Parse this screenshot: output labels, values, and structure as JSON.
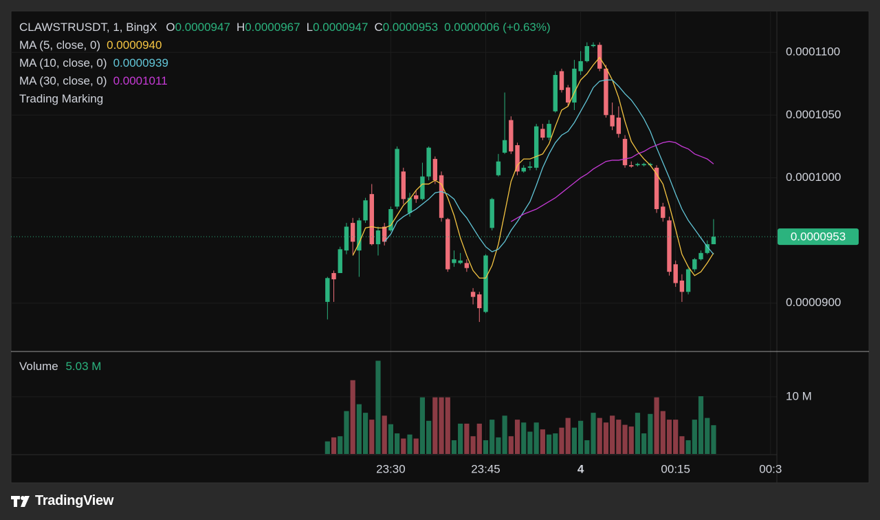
{
  "chart_data": {
    "type": "candlestick",
    "title": "CLAWSTRUSDT, 1, BingX",
    "ohlc_legend": [
      {
        "key": "O",
        "text": "0.0000947"
      },
      {
        "key": "H",
        "text": "0.0000967"
      },
      {
        "key": "L",
        "text": "0.0000947"
      },
      {
        "key": "C",
        "text": "0.0000953"
      }
    ],
    "change": "0.0000006 (+0.63%)",
    "note": "Trading Marking",
    "up_color": "#2bb37e",
    "down_color": "#ef6f79",
    "x": [
      "23:20",
      "23:21",
      "23:22",
      "23:23",
      "23:24",
      "23:25",
      "23:26",
      "23:27",
      "23:28",
      "23:29",
      "23:30",
      "23:31",
      "23:32",
      "23:33",
      "23:34",
      "23:35",
      "23:36",
      "23:37",
      "23:38",
      "23:39",
      "23:40",
      "23:41",
      "23:42",
      "23:43",
      "23:44",
      "23:45",
      "23:46",
      "23:47",
      "23:48",
      "23:49",
      "23:50",
      "23:51",
      "23:52",
      "23:53",
      "23:54",
      "23:55",
      "23:56",
      "23:57",
      "23:58",
      "23:59",
      "00:00",
      "00:01",
      "00:02",
      "00:03",
      "00:04",
      "00:05",
      "00:06",
      "00:07",
      "00:08",
      "00:09",
      "00:10",
      "00:11",
      "00:12",
      "00:13",
      "00:14",
      "00:15",
      "00:16",
      "00:17",
      "00:18",
      "00:19",
      "00:20",
      "00:21"
    ],
    "xlim": [
      "22:30",
      "00:31"
    ],
    "xticks": [
      "23:30",
      "23:45",
      {
        "value": "00:00",
        "label": "4"
      },
      "00:15",
      {
        "value": "00:30",
        "label": "00:3"
      }
    ],
    "ylim": [
      8.62e-05,
      0.0001133
    ],
    "yticks": [
      {
        "value": 9e-05,
        "label": "0.0000900"
      },
      {
        "value": 0.0001,
        "label": "0.0001000"
      },
      {
        "value": 0.000105,
        "label": "0.0001050"
      },
      {
        "value": 0.00011,
        "label": "0.0001100"
      }
    ],
    "grid": true,
    "open": [
      9.01e-05,
      9.24e-05,
      9.24e-05,
      9.42e-05,
      9.64e-05,
      9.42e-05,
      9.66e-05,
      9.87e-05,
      9.47e-05,
      9.61e-05,
      9.58e-05,
      9.77e-05,
      0.0001005,
      9.72e-05,
      9.86e-05,
      9.83e-05,
      0.0001001,
      0.0001015,
      0.0001002,
      9.67e-05,
      9.32e-05,
      9.32e-05,
      9.32e-05,
      9.09e-05,
      9.07e-05,
      8.93e-05,
      9.6e-05,
      0.0001002,
      0.000102,
      0.0001046,
      0.0001026,
      0.0001005,
      0.0001008,
      0.0001008,
      0.0001039,
      0.0001032,
      0.0001053,
      0.0001085,
      0.0001072,
      0.000106,
      0.0001085,
      0.0001093,
      0.0001105,
      0.0001106,
      0.0001087,
      0.000105,
      0.0001048,
      0.0001031,
      0.000101,
      0.000101,
      0.000101,
      0.000101,
      0.0001008,
      9.77e-05,
      9.66e-05,
      9.31e-05,
      9.18e-05,
      9.09e-05,
      9.27e-05,
      9.35e-05,
      9.4e-05,
      9.47e-05
    ],
    "high": [
      9.21e-05,
      9.26e-05,
      9.45e-05,
      9.64e-05,
      9.68e-05,
      9.68e-05,
      9.84e-05,
      9.95e-05,
      9.61e-05,
      9.64e-05,
      9.77e-05,
      0.0001025,
      0.0001008,
      9.88e-05,
      9.9e-05,
      0.0001012,
      0.0001025,
      0.0001017,
      0.0001005,
      9.68e-05,
      9.42e-05,
      9.4e-05,
      9.35e-05,
      9.12e-05,
      9.09e-05,
      9.39e-05,
      9.84e-05,
      0.0001019,
      0.0001068,
      0.0001049,
      0.0001028,
      0.000101,
      0.0001013,
      0.0001043,
      0.0001043,
      0.0001046,
      0.0001085,
      0.0001087,
      0.0001074,
      0.0001094,
      0.0001101,
      0.0001108,
      0.0001108,
      0.0001108,
      0.000109,
      0.000106,
      0.0001057,
      0.0001034,
      0.0001013,
      0.0001012,
      0.0001012,
      0.0001012,
      0.000101,
      9.8e-05,
      9.69e-05,
      9.34e-05,
      9.23e-05,
      9.28e-05,
      9.36e-05,
      9.42e-05,
      9.5e-05,
      9.67e-05
    ],
    "low": [
      8.87e-05,
      9.01e-05,
      9.24e-05,
      9.39e-05,
      9.39e-05,
      9.21e-05,
      9.64e-05,
      9.46e-05,
      9.38e-05,
      9.46e-05,
      9.57e-05,
      9.75e-05,
      9.79e-05,
      9.69e-05,
      9.8e-05,
      9.82e-05,
      9.98e-05,
      9.95e-05,
      9.65e-05,
      9.25e-05,
      9.29e-05,
      9.31e-05,
      9.25e-05,
      8.99e-05,
      8.85e-05,
      8.92e-05,
      9.58e-05,
      0.0001001,
      0.0001019,
      0.0001019,
      0.0001002,
      0.0001004,
      0.0001006,
      0.0001006,
      0.000103,
      0.000103,
      0.0001052,
      0.0001068,
      0.0001057,
      0.0001054,
      0.0001082,
      0.0001092,
      0.0001104,
      0.0001085,
      0.0001048,
      0.0001038,
      0.0001032,
      0.0001008,
      0.0001008,
      0.0001009,
      0.0001009,
      0.0001009,
      9.72e-05,
      9.65e-05,
      9.22e-05,
      9.13e-05,
      9.01e-05,
      9.07e-05,
      9.25e-05,
      9.34e-05,
      9.39e-05,
      9.47e-05
    ],
    "close": [
      9.2e-05,
      9.19e-05,
      9.43e-05,
      9.61e-05,
      9.49e-05,
      9.66e-05,
      9.82e-05,
      9.47e-05,
      9.58e-05,
      9.49e-05,
      9.75e-05,
      0.0001023,
      9.83e-05,
      9.84e-05,
      9.83e-05,
      0.0001001,
      0.0001024,
      9.98e-05,
      9.68e-05,
      9.27e-05,
      9.35e-05,
      9.34e-05,
      9.28e-05,
      9.05e-05,
      8.96e-05,
      9.38e-05,
      9.83e-05,
      0.0001013,
      0.000103,
      0.0001021,
      0.0001005,
      0.0001008,
      0.0001009,
      0.0001041,
      0.0001032,
      0.0001043,
      0.0001082,
      0.000107,
      0.000106,
      0.0001087,
      0.0001093,
      0.0001105,
      0.0001106,
      0.0001087,
      0.000105,
      0.0001041,
      0.0001035,
      0.000101,
      0.0001009,
      0.0001011,
      0.0001011,
      0.0001011,
      9.75e-05,
      9.68e-05,
      9.25e-05,
      9.16e-05,
      9.09e-05,
      9.27e-05,
      9.35e-05,
      9.4e-05,
      9.47e-05,
      9.53e-05
    ],
    "last_price_label": "0.0000953",
    "series": [
      {
        "name": "MA (5, close, 0)",
        "color": "#f5c542",
        "last_label": "0.0000940",
        "values": [
          null,
          null,
          null,
          null,
          9.38e-05,
          9.48e-05,
          9.6e-05,
          9.61e-05,
          9.6e-05,
          9.6e-05,
          9.62e-05,
          9.7e-05,
          9.78e-05,
          9.83e-05,
          9.9e-05,
          9.95e-05,
          9.95e-05,
          9.98e-05,
          9.95e-05,
          9.84e-05,
          9.7e-05,
          9.52e-05,
          9.38e-05,
          9.26e-05,
          9.2e-05,
          9.2e-05,
          9.3e-05,
          9.47e-05,
          9.72e-05,
          9.97e-05,
          0.000101,
          0.0001015,
          0.0001015,
          0.0001017,
          0.0001019,
          0.0001027,
          0.0001041,
          0.0001054,
          0.0001057,
          0.0001068,
          0.0001078,
          0.0001083,
          0.000109,
          0.0001096,
          0.0001088,
          0.0001078,
          0.0001064,
          0.0001045,
          0.0001029,
          0.0001021,
          0.0001015,
          0.000101,
          0.0001003,
          9.95e-05,
          9.78e-05,
          9.59e-05,
          9.39e-05,
          9.29e-05,
          9.22e-05,
          9.25e-05,
          9.32e-05,
          9.4e-05
        ]
      },
      {
        "name": "MA (10, close, 0)",
        "color": "#62c6d8",
        "last_label": "0.0000939",
        "values": [
          null,
          null,
          null,
          null,
          null,
          null,
          null,
          null,
          null,
          9.49e-05,
          9.55e-05,
          9.65e-05,
          9.69e-05,
          9.72e-05,
          9.75e-05,
          9.79e-05,
          9.83e-05,
          9.88e-05,
          9.89e-05,
          9.87e-05,
          9.83e-05,
          9.74e-05,
          9.68e-05,
          9.6e-05,
          9.52e-05,
          9.45e-05,
          9.41e-05,
          9.43e-05,
          9.49e-05,
          9.58e-05,
          9.65e-05,
          9.73e-05,
          9.81e-05,
          9.94e-05,
          0.0001008,
          0.0001019,
          0.0001028,
          0.0001034,
          0.0001037,
          0.0001044,
          0.0001053,
          0.0001062,
          0.0001072,
          0.0001077,
          0.0001078,
          0.0001078,
          0.0001073,
          0.0001067,
          0.0001062,
          0.0001055,
          0.0001047,
          0.0001037,
          0.0001024,
          0.0001012,
          0.0001,
          9.87e-05,
          9.75e-05,
          9.66e-05,
          9.59e-05,
          9.52e-05,
          9.45e-05,
          9.39e-05
        ]
      },
      {
        "name": "MA (30, close, 0)",
        "color": "#c63ad6",
        "last_label": "0.0001011",
        "values": [
          null,
          null,
          null,
          null,
          null,
          null,
          null,
          null,
          null,
          null,
          null,
          null,
          null,
          null,
          null,
          null,
          null,
          null,
          null,
          null,
          null,
          null,
          null,
          null,
          null,
          null,
          null,
          null,
          null,
          9.65e-05,
          9.68e-05,
          9.71e-05,
          9.73e-05,
          9.75e-05,
          9.78e-05,
          9.81e-05,
          9.84e-05,
          9.88e-05,
          9.92e-05,
          9.96e-05,
          0.0001,
          0.0001003,
          0.0001007,
          0.000101,
          0.0001013,
          0.0001014,
          0.0001014,
          0.0001015,
          0.0001016,
          0.0001019,
          0.0001021,
          0.0001024,
          0.0001026,
          0.0001028,
          0.0001029,
          0.0001028,
          0.0001025,
          0.0001023,
          0.0001019,
          0.0001017,
          0.0001015,
          0.0001011
        ]
      }
    ],
    "volume": {
      "label": "Volume",
      "last_label": "5.03 M",
      "up_color": "#1f6e4f",
      "down_color": "#8c3c45",
      "ylim": [
        0,
        17800000
      ],
      "yticks": [
        {
          "value": 10000000,
          "label": "10 M"
        }
      ],
      "values": [
        2200000,
        2900000,
        3100000,
        7500000,
        12900000,
        8700000,
        7200000,
        6000000,
        16300000,
        6700000,
        5200000,
        3600000,
        2700000,
        3400000,
        2700000,
        9900000,
        5800000,
        9900000,
        9900000,
        9900000,
        2400000,
        5300000,
        5300000,
        3100000,
        5300000,
        2400000,
        6000000,
        2900000,
        6700000,
        3100000,
        6000000,
        5500000,
        3900000,
        5500000,
        4300000,
        3400000,
        3600000,
        4600000,
        6300000,
        4600000,
        5800000,
        2400000,
        7200000,
        6300000,
        5500000,
        6700000,
        6000000,
        5100000,
        4800000,
        7200000,
        3600000,
        7000000,
        9900000,
        7500000,
        6000000,
        6000000,
        3100000,
        2400000,
        6000000,
        10100000,
        6300000,
        5030000
      ]
    }
  },
  "footer": {
    "brand": "TradingView"
  }
}
